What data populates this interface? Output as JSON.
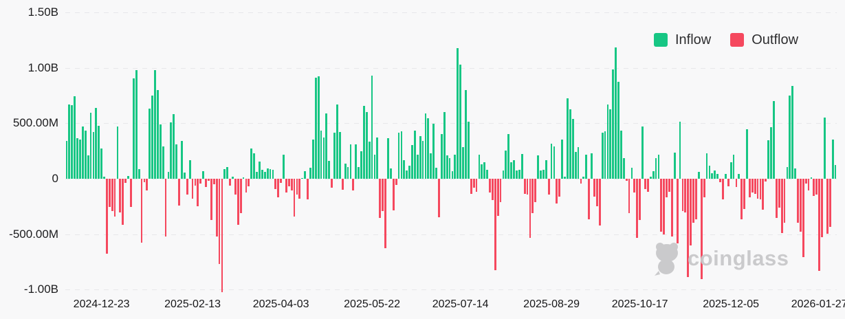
{
  "legend": {
    "inflow_label": "Inflow",
    "outflow_label": "Outflow"
  },
  "watermark": {
    "text": "coinglass"
  },
  "colors": {
    "inflow": "#17c684",
    "outflow": "#f5485e",
    "background": "#f8f8f9",
    "grid": "#e7e7ea",
    "axis_text": "#1c1c1e",
    "watermark": "#c8c8ca"
  },
  "chart_data": {
    "type": "bar",
    "title": "",
    "unit_note": "values in millions USD; positive = Inflow (green), negative = Outflow (red)",
    "ylim_millions": [
      -1150,
      1550
    ],
    "grid": "horizontal-dashed",
    "legend_position": "top-right",
    "y_ticks": [
      {
        "value_millions": 1500,
        "label": "1.50B"
      },
      {
        "value_millions": 1000,
        "label": "1.00B"
      },
      {
        "value_millions": 500,
        "label": "500.00M"
      },
      {
        "value_millions": 0,
        "label": "0"
      },
      {
        "value_millions": -500,
        "label": "-500.00M"
      },
      {
        "value_millions": -1000,
        "label": "-1.00B"
      }
    ],
    "x_ticks": [
      {
        "index": 13,
        "label": "2024-12-23"
      },
      {
        "index": 47,
        "label": "2025-02-13"
      },
      {
        "index": 80,
        "label": "2025-04-03"
      },
      {
        "index": 114,
        "label": "2025-05-22"
      },
      {
        "index": 147,
        "label": "2025-07-14"
      },
      {
        "index": 181,
        "label": "2025-08-29"
      },
      {
        "index": 214,
        "label": "2025-10-17"
      },
      {
        "index": 248,
        "label": "2025-12-05"
      },
      {
        "index": 281,
        "label": "2026-01-27"
      }
    ],
    "series": [
      {
        "name": "Inflow",
        "color": "#17c684"
      },
      {
        "name": "Outflow",
        "color": "#f5485e"
      }
    ],
    "values_millions": [
      340,
      672,
      662,
      744,
      365,
      354,
      469,
      431,
      208,
      594,
      421,
      640,
      475,
      271,
      20,
      -677,
      -256,
      -292,
      -344,
      469,
      -302,
      -417,
      -35,
      25,
      -256,
      906,
      979,
      88,
      -579,
      -30,
      -108,
      635,
      750,
      979,
      802,
      490,
      294,
      -520,
      60,
      510,
      580,
      313,
      -240,
      340,
      56,
      -142,
      167,
      -177,
      -63,
      -246,
      -44,
      69,
      -77,
      -17,
      -371,
      -52,
      -519,
      -771,
      -1021,
      88,
      108,
      -63,
      17,
      -140,
      -417,
      -308,
      10,
      -125,
      -69,
      271,
      229,
      63,
      156,
      83,
      63,
      94,
      88,
      79,
      -94,
      -167,
      -38,
      215,
      -125,
      -69,
      -104,
      -340,
      -142,
      -177,
      6,
      67,
      -183,
      98,
      354,
      910,
      921,
      437,
      371,
      587,
      162,
      -79,
      417,
      671,
      421,
      -100,
      135,
      104,
      312,
      -104,
      308,
      108,
      250,
      656,
      604,
      333,
      933,
      215,
      375,
      -354,
      -292,
      -625,
      365,
      94,
      -288,
      -58,
      417,
      427,
      167,
      73,
      115,
      302,
      437,
      219,
      385,
      344,
      587,
      548,
      229,
      494,
      98,
      -350,
      406,
      604,
      212,
      188,
      67,
      219,
      1177,
      1031,
      287,
      802,
      517,
      -135,
      -83,
      -115,
      219,
      129,
      150,
      83,
      -125,
      -192,
      -823,
      -333,
      -208,
      73,
      256,
      400,
      150,
      167,
      73,
      83,
      225,
      -134,
      -144,
      -536,
      -313,
      -210,
      210,
      72,
      78,
      169,
      -140,
      319,
      293,
      -223,
      -161,
      354,
      16,
      725,
      628,
      540,
      243,
      284,
      -45,
      16,
      219,
      -365,
      230,
      -160,
      -250,
      -420,
      417,
      427,
      667,
      625,
      983,
      1187,
      875,
      437,
      187,
      -21,
      -312,
      98,
      -125,
      -531,
      -375,
      473,
      -94,
      -115,
      17,
      67,
      187,
      219,
      -479,
      -500,
      -167,
      -115,
      -521,
      235,
      -583,
      517,
      -292,
      -302,
      -885,
      -604,
      -396,
      -365,
      63,
      -906,
      -167,
      229,
      115,
      52,
      73,
      42,
      -31,
      -188,
      46,
      -67,
      146,
      219,
      -77,
      46,
      -365,
      -271,
      448,
      -167,
      -125,
      -135,
      -177,
      -188,
      -281,
      -25,
      350,
      462,
      698,
      -354,
      -260,
      -490,
      -396,
      108,
      750,
      837,
      94,
      -396,
      -479,
      -708,
      -46,
      -104,
      10,
      -156,
      -142,
      -829,
      -525,
      552,
      -496,
      -437,
      354,
      125
    ]
  }
}
